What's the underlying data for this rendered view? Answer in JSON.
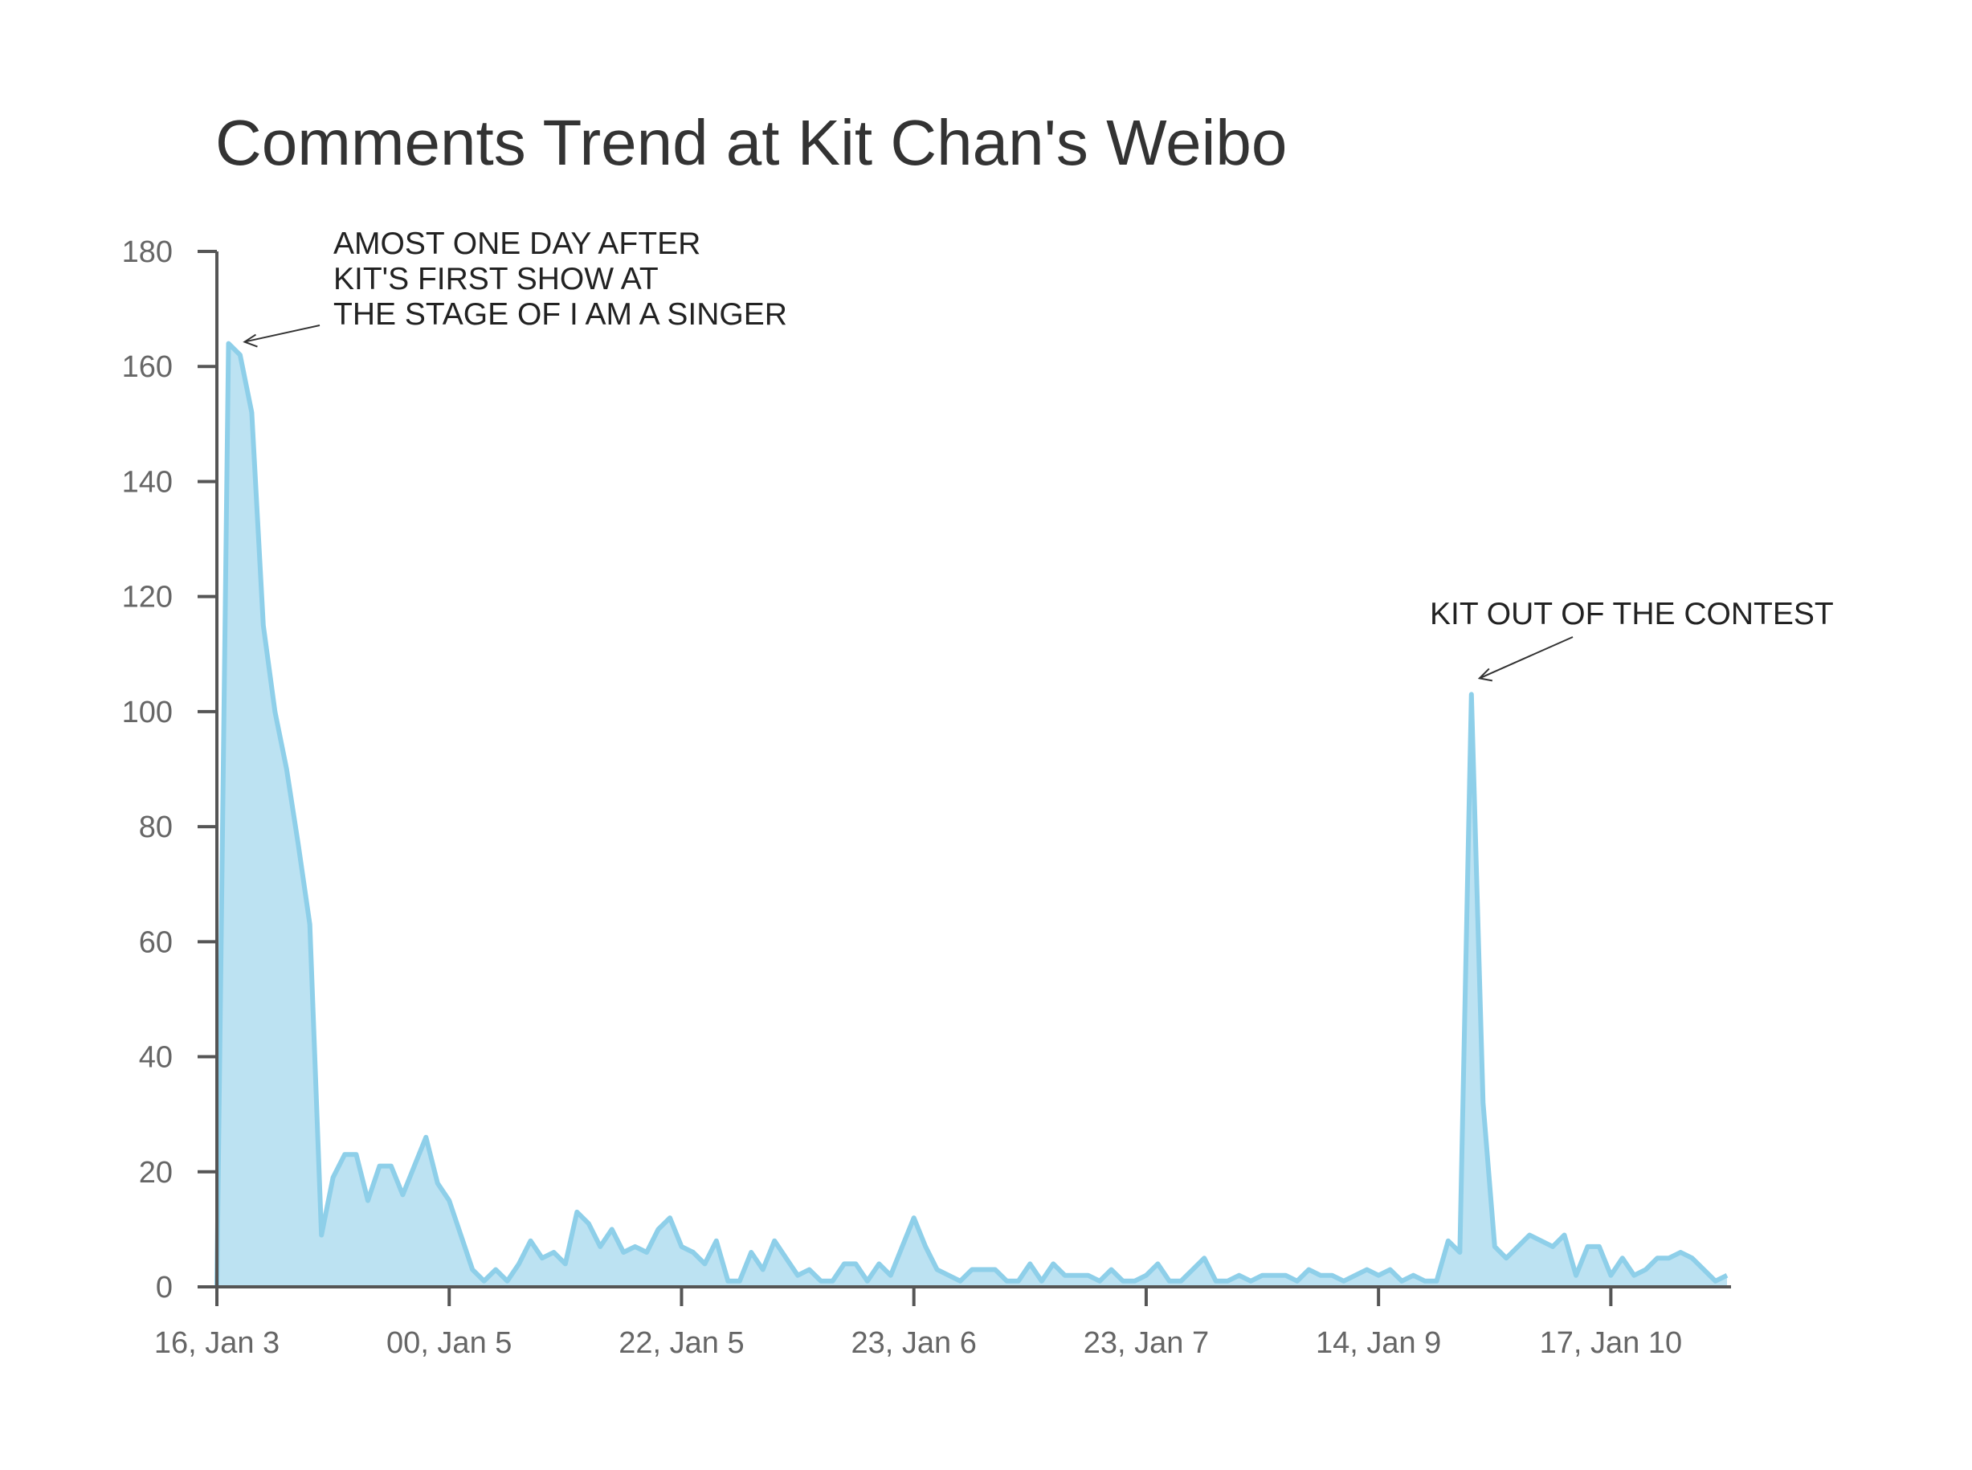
{
  "chart_data": {
    "type": "area",
    "title": "Comments Trend at Kit Chan's Weibo",
    "xlabel": "",
    "ylabel": "",
    "ylim": [
      0,
      180
    ],
    "yticks": [
      0,
      20,
      40,
      60,
      80,
      100,
      120,
      140,
      160,
      180
    ],
    "xticks": [
      {
        "label": "16, Jan 3",
        "index": 0
      },
      {
        "label": "00, Jan 5",
        "index": 20
      },
      {
        "label": "22, Jan 5",
        "index": 40
      },
      {
        "label": "23, Jan 6",
        "index": 60
      },
      {
        "label": "23, Jan 7",
        "index": 80
      },
      {
        "label": "14, Jan 9",
        "index": 100
      },
      {
        "label": "17, Jan 10",
        "index": 120
      }
    ],
    "grid": false,
    "legend": "none",
    "colors": {
      "line": "#8ecfe9",
      "fill": "#bce2f2",
      "axis": "#555555",
      "tick_text": "#666666",
      "annotation_text": "#222222"
    },
    "values": [
      0,
      164,
      162,
      152,
      115,
      100,
      90,
      77,
      63,
      9,
      19,
      23,
      23,
      15,
      21,
      21,
      16,
      21,
      26,
      18,
      15,
      9,
      3,
      1,
      3,
      1,
      4,
      8,
      5,
      6,
      4,
      13,
      11,
      7,
      10,
      6,
      7,
      6,
      10,
      12,
      7,
      6,
      4,
      8,
      1,
      1,
      6,
      3,
      8,
      5,
      2,
      3,
      1,
      1,
      4,
      4,
      1,
      4,
      2,
      7,
      12,
      7,
      3,
      2,
      1,
      3,
      3,
      3,
      1,
      1,
      4,
      1,
      4,
      2,
      2,
      2,
      1,
      3,
      1,
      1,
      2,
      4,
      1,
      1,
      3,
      5,
      1,
      1,
      2,
      1,
      2,
      2,
      2,
      1,
      3,
      2,
      2,
      1,
      2,
      3,
      2,
      3,
      1,
      2,
      1,
      1,
      8,
      6,
      103,
      32,
      7,
      5,
      7,
      9,
      8,
      7,
      9,
      2,
      7,
      7,
      2,
      5,
      2,
      3,
      5,
      5,
      6,
      5,
      3,
      1,
      2
    ],
    "annotations": [
      {
        "lines": [
          "AMOST ONE DAY AFTER",
          "KIT'S FIRST SHOW AT",
          "THE STAGE OF I AM A SINGER"
        ],
        "points_to_index": 1
      },
      {
        "lines": [
          "KIT OUT OF THE CONTEST"
        ],
        "points_to_index": 108
      }
    ]
  }
}
